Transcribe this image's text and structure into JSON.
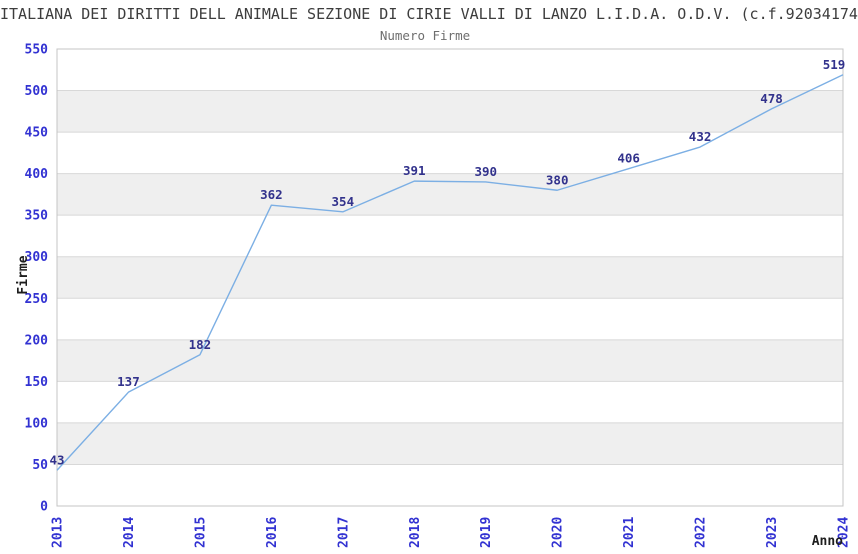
{
  "header": {
    "title_visible": "ITALIANA DEI DIRITTI DELL ANIMALE SEZIONE DI CIRIE VALLI DI LANZO L.I.D.A. O.D.V. (c.f.92034174",
    "subtitle": "Numero Firme"
  },
  "chart_data": {
    "type": "line",
    "title": "Numero Firme",
    "xlabel": "Anno",
    "ylabel": "Firme",
    "categories": [
      "2013",
      "2014",
      "2015",
      "2016",
      "2017",
      "2018",
      "2019",
      "2020",
      "2021",
      "2022",
      "2023",
      "2024"
    ],
    "series": [
      {
        "name": "Numero Firme",
        "values": [
          43,
          137,
          182,
          362,
          354,
          391,
          390,
          380,
          406,
          432,
          478,
          519
        ]
      }
    ],
    "ylim": [
      0,
      550
    ],
    "ytick_step": 50,
    "yticks": [
      0,
      50,
      100,
      150,
      200,
      250,
      300,
      350,
      400,
      450,
      500,
      550
    ],
    "grid": "horizontal",
    "background_bands": "alternating-gray",
    "legend_position": "none",
    "point_labels_shown": true,
    "x_tick_rotation_deg": -90
  },
  "colors": {
    "line": "#7cafe4",
    "tick_label": "#3232d2",
    "data_label": "#32328c",
    "band": "#efefef",
    "gridline": "#d8d8d8",
    "border": "#c4c4c4",
    "title": "#3d3d3d",
    "subtitle": "#6e6e6e",
    "axis_label": "#1e1e1e",
    "background": "#ffffff"
  }
}
